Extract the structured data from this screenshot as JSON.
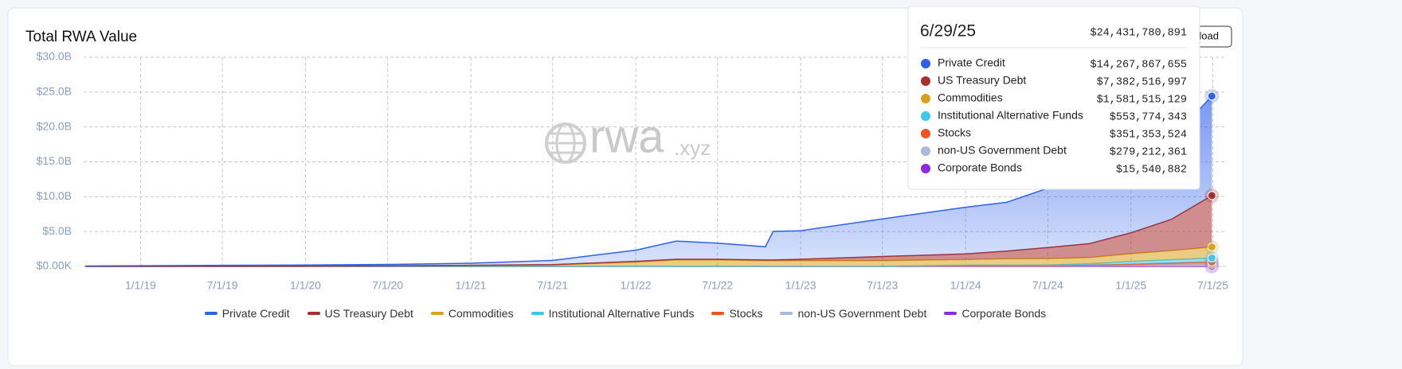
{
  "chart_data": {
    "type": "stacked-area",
    "title": "Total RWA Value",
    "button": "Download",
    "watermark": {
      "name": "rwa",
      "suffix": ".xyz"
    },
    "x": [
      "2018-09-01",
      "2019-01-01",
      "2019-07-01",
      "2020-01-01",
      "2020-07-01",
      "2021-01-01",
      "2021-07-01",
      "2022-01-01",
      "2022-04-01",
      "2022-07-01",
      "2022-10-15",
      "2022-11-01",
      "2023-01-01",
      "2023-07-01",
      "2024-01-01",
      "2024-04-01",
      "2024-07-01",
      "2024-10-01",
      "2025-01-01",
      "2025-04-01",
      "2025-06-29"
    ],
    "xlim": [
      "2018-08-28",
      "2025-08-01"
    ],
    "xticks": [
      {
        "value": "2019-01-01",
        "label": "1/1/19"
      },
      {
        "value": "2019-07-01",
        "label": "7/1/19"
      },
      {
        "value": "2020-01-01",
        "label": "1/1/20"
      },
      {
        "value": "2020-07-01",
        "label": "7/1/20"
      },
      {
        "value": "2021-01-01",
        "label": "1/1/21"
      },
      {
        "value": "2021-07-01",
        "label": "7/1/21"
      },
      {
        "value": "2022-01-01",
        "label": "1/1/22"
      },
      {
        "value": "2022-07-01",
        "label": "7/1/22"
      },
      {
        "value": "2023-01-01",
        "label": "1/1/23"
      },
      {
        "value": "2023-07-01",
        "label": "7/1/23"
      },
      {
        "value": "2024-01-01",
        "label": "1/1/24"
      },
      {
        "value": "2024-07-01",
        "label": "7/1/24"
      },
      {
        "value": "2025-01-01",
        "label": "1/1/25"
      },
      {
        "value": "2025-07-01",
        "label": "7/1/25"
      }
    ],
    "ylim": [
      0,
      30000000000
    ],
    "yticks": [
      {
        "value": 0,
        "label": "$0.00K"
      },
      {
        "value": 5000000000,
        "label": "$5.0B"
      },
      {
        "value": 10000000000,
        "label": "$10.0B"
      },
      {
        "value": 15000000000,
        "label": "$15.0B"
      },
      {
        "value": 20000000000,
        "label": "$20.0B"
      },
      {
        "value": 25000000000,
        "label": "$25.0B"
      },
      {
        "value": 30000000000,
        "label": "$30.0B"
      }
    ],
    "grid": true,
    "legend": "bottom",
    "series": [
      {
        "name": "Private Credit",
        "color": "#2f62ec",
        "values": [
          40000000,
          80000000,
          120000000,
          150000000,
          200000000,
          300000000,
          600000000,
          1600000000,
          2600000000,
          2300000000,
          1900000000,
          4100000000,
          4100000000,
          5400000000,
          6700000000,
          7000000000,
          8500000000,
          9300000000,
          10500000000,
          11500000000,
          14267867655
        ],
        "value_labels": [
          null,
          null,
          null,
          null,
          null,
          null,
          null,
          null,
          null,
          null,
          null,
          null,
          null,
          null,
          null,
          null,
          null,
          null,
          null,
          null,
          "$14,267,867,655"
        ]
      },
      {
        "name": "US Treasury Debt",
        "color": "#a92f2f",
        "values": [
          0,
          0,
          0,
          0,
          0,
          0,
          50000000,
          100000000,
          100000000,
          100000000,
          100000000,
          100000000,
          200000000,
          600000000,
          800000000,
          1100000000,
          1600000000,
          2000000000,
          3000000000,
          4500000000,
          7382516997
        ],
        "value_labels": [
          null,
          null,
          null,
          null,
          null,
          null,
          null,
          null,
          null,
          null,
          null,
          null,
          null,
          null,
          null,
          null,
          null,
          null,
          null,
          null,
          "$7,382,516,997"
        ]
      },
      {
        "name": "Commodities",
        "color": "#d9a21b",
        "values": [
          10000000,
          20000000,
          30000000,
          50000000,
          80000000,
          150000000,
          200000000,
          600000000,
          900000000,
          900000000,
          800000000,
          800000000,
          800000000,
          800000000,
          800000000,
          900000000,
          900000000,
          900000000,
          1100000000,
          1300000000,
          1581515129
        ],
        "value_labels": [
          null,
          null,
          null,
          null,
          null,
          null,
          null,
          null,
          null,
          null,
          null,
          null,
          null,
          null,
          null,
          null,
          null,
          null,
          null,
          null,
          "$1,581,515,129"
        ]
      },
      {
        "name": "Institutional Alternative Funds",
        "color": "#3fc6ea",
        "values": [
          0,
          0,
          0,
          0,
          0,
          0,
          0,
          0,
          0,
          0,
          0,
          0,
          0,
          0,
          100000000,
          100000000,
          100000000,
          200000000,
          400000000,
          500000000,
          553774343
        ],
        "value_labels": [
          null,
          null,
          null,
          null,
          null,
          null,
          null,
          null,
          null,
          null,
          null,
          null,
          null,
          null,
          null,
          null,
          null,
          null,
          null,
          null,
          "$553,774,343"
        ]
      },
      {
        "name": "Stocks",
        "color": "#f0531f",
        "values": [
          0,
          0,
          0,
          0,
          0,
          0,
          10000000,
          30000000,
          30000000,
          30000000,
          20000000,
          20000000,
          20000000,
          20000000,
          20000000,
          30000000,
          40000000,
          50000000,
          100000000,
          200000000,
          351353524
        ],
        "value_labels": [
          null,
          null,
          null,
          null,
          null,
          null,
          null,
          null,
          null,
          null,
          null,
          null,
          null,
          null,
          null,
          null,
          null,
          null,
          null,
          null,
          "$351,353,524"
        ]
      },
      {
        "name": "non-US Government Debt",
        "color": "#a9b9dc",
        "values": [
          0,
          0,
          0,
          0,
          0,
          0,
          0,
          0,
          0,
          0,
          0,
          0,
          0,
          0,
          50000000,
          50000000,
          50000000,
          100000000,
          200000000,
          250000000,
          279212361
        ],
        "value_labels": [
          null,
          null,
          null,
          null,
          null,
          null,
          null,
          null,
          null,
          null,
          null,
          null,
          null,
          null,
          null,
          null,
          null,
          null,
          null,
          null,
          "$279,212,361"
        ]
      },
      {
        "name": "Corporate Bonds",
        "color": "#8a2be2",
        "values": [
          0,
          0,
          0,
          0,
          0,
          0,
          0,
          0,
          0,
          0,
          0,
          0,
          0,
          0,
          20000000,
          20000000,
          20000000,
          20000000,
          20000000,
          20000000,
          15540882
        ],
        "value_labels": [
          null,
          null,
          null,
          null,
          null,
          null,
          null,
          null,
          null,
          null,
          null,
          null,
          null,
          null,
          null,
          null,
          null,
          null,
          null,
          null,
          "$15,540,882"
        ]
      }
    ],
    "tooltip": {
      "date": "6/29/25",
      "total": {
        "value": 24431780891,
        "label": "$24,431,780,891"
      }
    }
  }
}
